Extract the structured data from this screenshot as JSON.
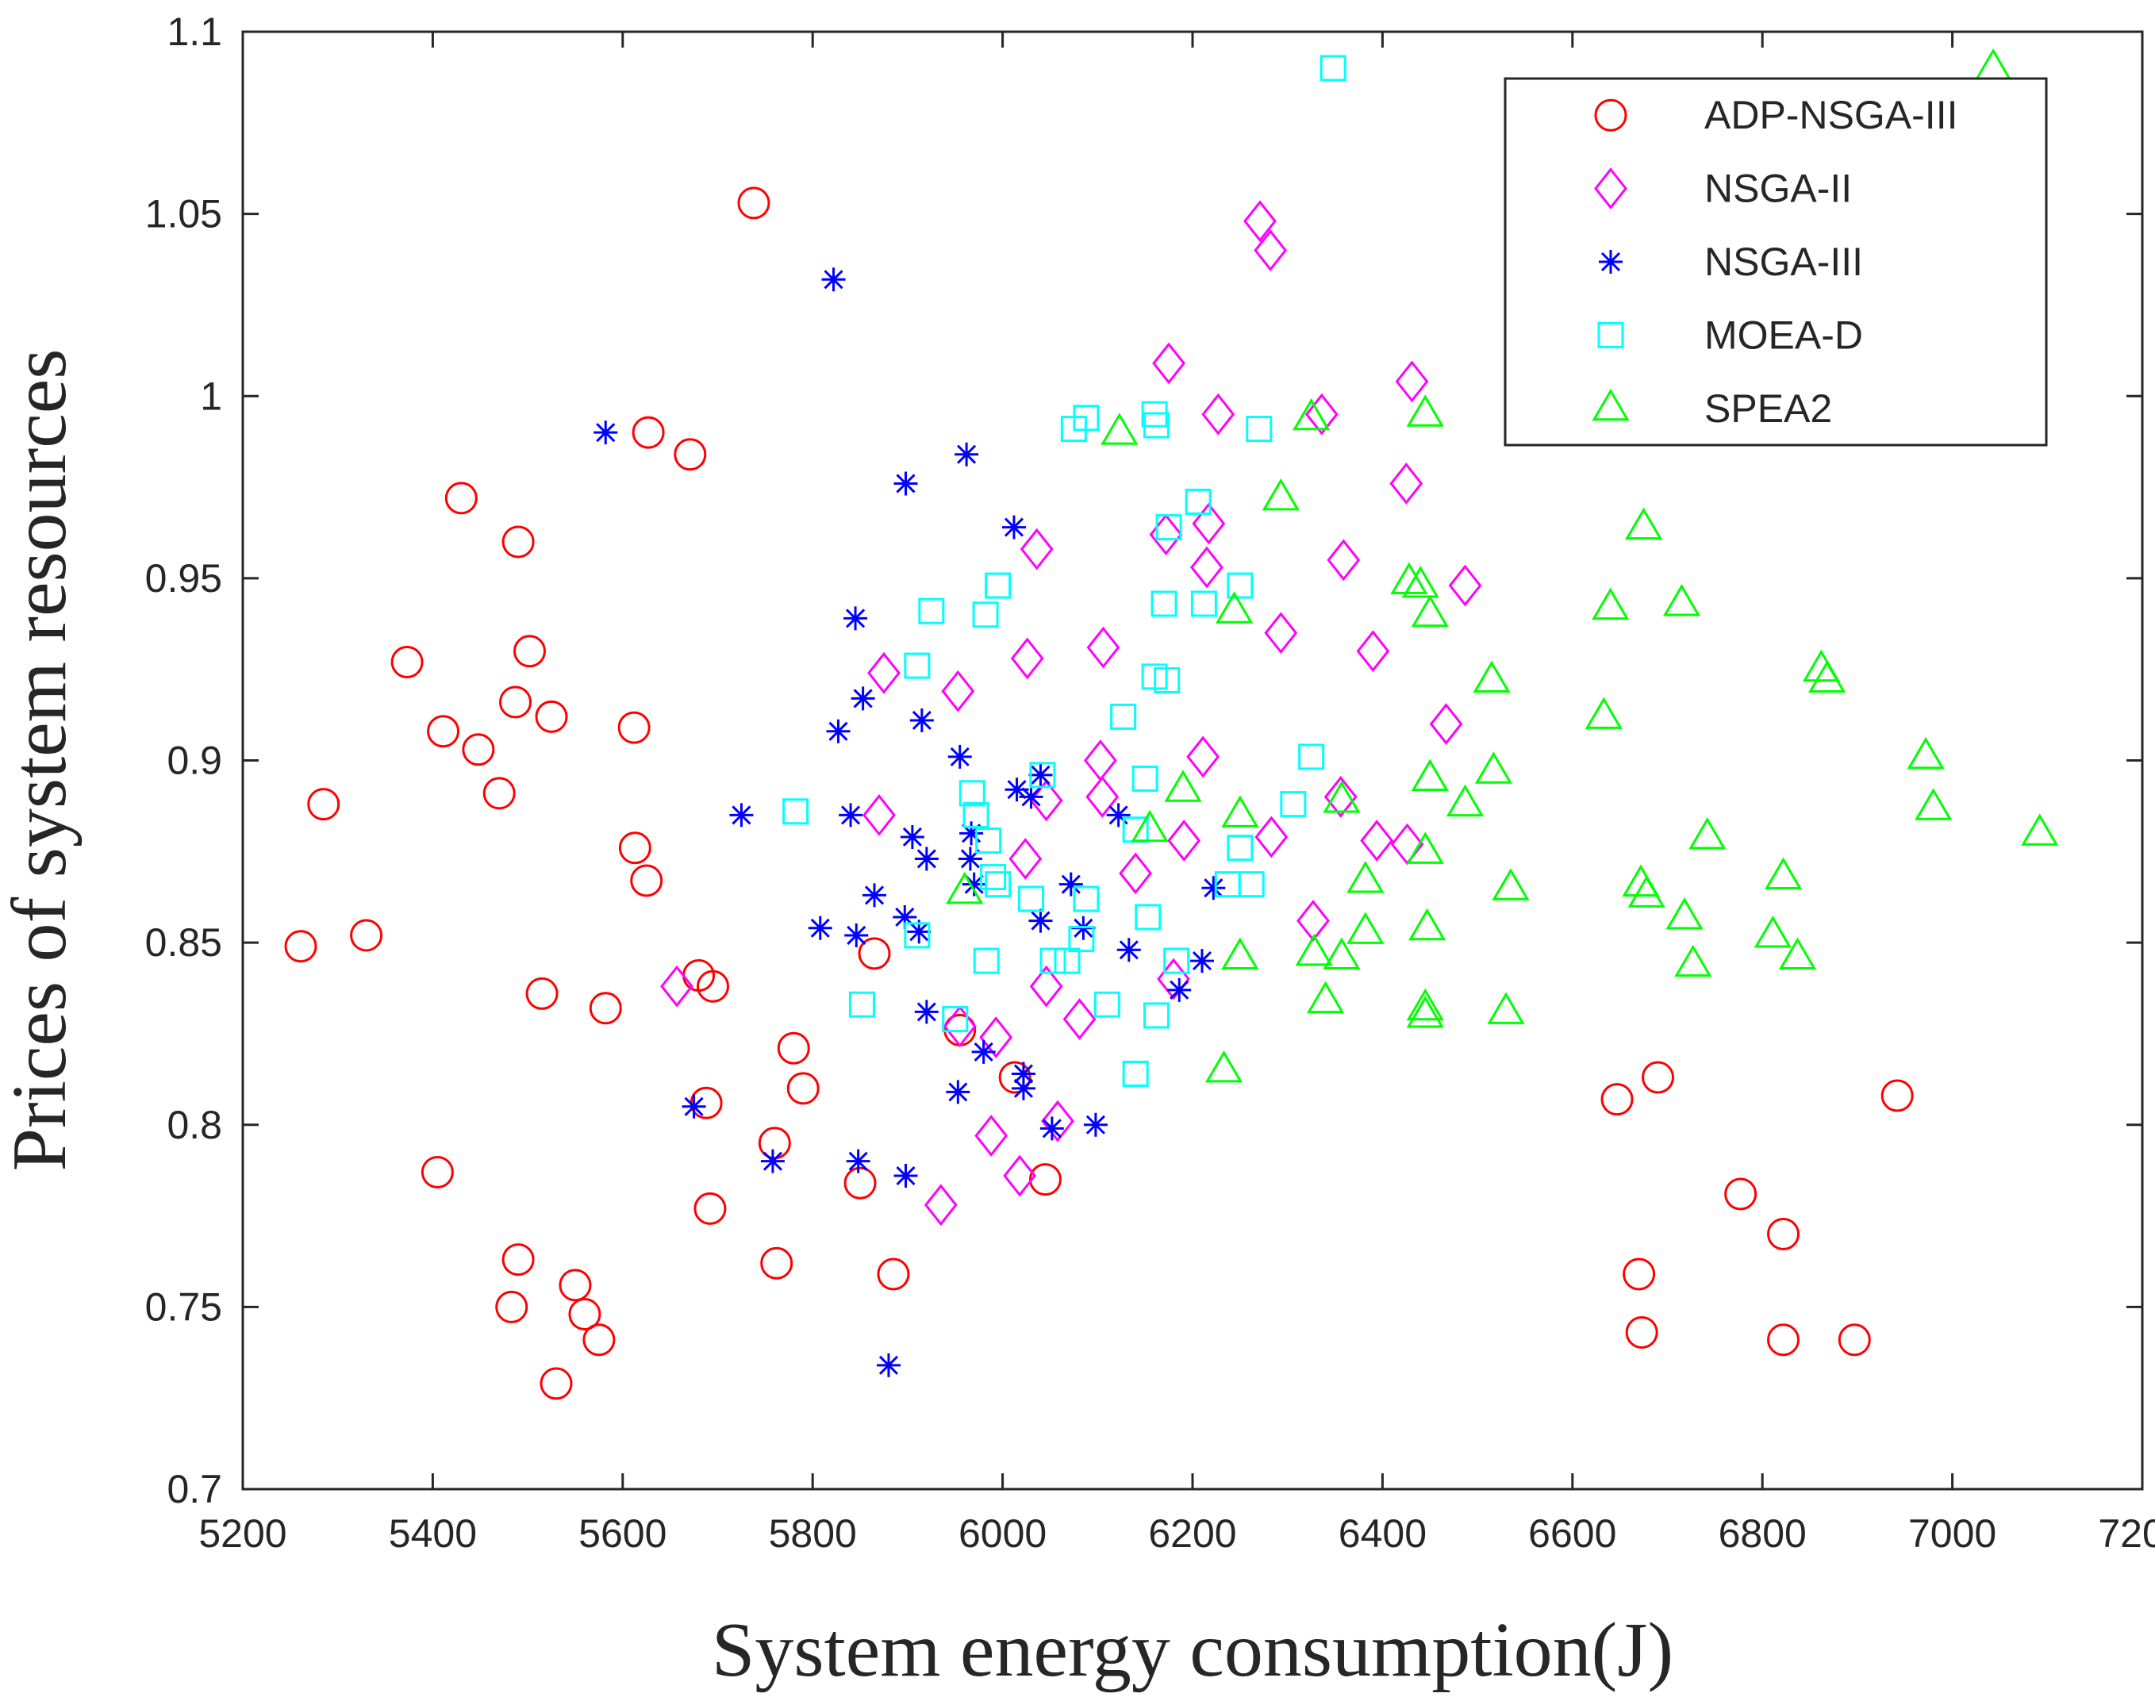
{
  "chart_data": {
    "type": "scatter",
    "title": "",
    "xlabel": "System energy consumption(J)",
    "ylabel": "Prices of system resources",
    "xlim": [
      5200,
      7200
    ],
    "ylim": [
      0.7,
      1.1
    ],
    "xticks": [
      5200,
      5400,
      5600,
      5800,
      6000,
      6200,
      6400,
      6600,
      6800,
      7000,
      7200
    ],
    "yticks": [
      0.7,
      0.75,
      0.8,
      0.85,
      0.9,
      0.95,
      1.0,
      1.05,
      1.1
    ],
    "xtick_labels": [
      "5200",
      "5400",
      "5600",
      "5800",
      "6000",
      "6200",
      "6400",
      "6600",
      "6800",
      "7000",
      "7200"
    ],
    "ytick_labels": [
      "0.7",
      "0.75",
      "0.8",
      "0.85",
      "0.9",
      "0.95",
      "1",
      "1.05",
      "1.1"
    ],
    "grid": false,
    "legend_position": "top-right",
    "series": [
      {
        "name": "ADP-NSGA-III",
        "marker": "circle",
        "color": "#ff0000",
        "points": [
          [
            5738,
            1.053
          ],
          [
            5627,
            0.99
          ],
          [
            5671,
            0.984
          ],
          [
            5430,
            0.972
          ],
          [
            5490,
            0.96
          ],
          [
            5373,
            0.927
          ],
          [
            5502,
            0.93
          ],
          [
            5487,
            0.916
          ],
          [
            5525,
            0.912
          ],
          [
            5411,
            0.908
          ],
          [
            5612,
            0.909
          ],
          [
            5448,
            0.903
          ],
          [
            5470,
            0.891
          ],
          [
            5285,
            0.888
          ],
          [
            5613,
            0.876
          ],
          [
            5625,
            0.867
          ],
          [
            5261,
            0.849
          ],
          [
            5330,
            0.852
          ],
          [
            5865,
            0.847
          ],
          [
            5680,
            0.841
          ],
          [
            5695,
            0.838
          ],
          [
            5515,
            0.836
          ],
          [
            5582,
            0.832
          ],
          [
            5955,
            0.826
          ],
          [
            5780,
            0.821
          ],
          [
            6013,
            0.813
          ],
          [
            5790,
            0.81
          ],
          [
            5688,
            0.806
          ],
          [
            5405,
            0.787
          ],
          [
            5760,
            0.795
          ],
          [
            5850,
            0.784
          ],
          [
            6045,
            0.785
          ],
          [
            5692,
            0.777
          ],
          [
            5490,
            0.763
          ],
          [
            5762,
            0.762
          ],
          [
            5550,
            0.756
          ],
          [
            5885,
            0.759
          ],
          [
            5483,
            0.75
          ],
          [
            5560,
            0.748
          ],
          [
            5575,
            0.741
          ],
          [
            5530,
            0.729
          ],
          [
            6647,
            0.807
          ],
          [
            6690,
            0.813
          ],
          [
            6942,
            0.808
          ],
          [
            6777,
            0.781
          ],
          [
            6670,
            0.759
          ],
          [
            6822,
            0.77
          ],
          [
            6673,
            0.743
          ],
          [
            6822,
            0.741
          ],
          [
            6897,
            0.741
          ]
        ]
      },
      {
        "name": "NSGA-II",
        "marker": "diamond",
        "color": "#ff00ff",
        "points": [
          [
            6271,
            1.048
          ],
          [
            6282,
            1.04
          ],
          [
            6175,
            1.009
          ],
          [
            6431,
            1.004
          ],
          [
            6227,
            0.995
          ],
          [
            6336,
            0.995
          ],
          [
            6425,
            0.976
          ],
          [
            6217,
            0.965
          ],
          [
            6172,
            0.962
          ],
          [
            6036,
            0.958
          ],
          [
            6359,
            0.955
          ],
          [
            6215,
            0.953
          ],
          [
            6487,
            0.948
          ],
          [
            6293,
            0.935
          ],
          [
            6106,
            0.931
          ],
          [
            6390,
            0.93
          ],
          [
            6026,
            0.928
          ],
          [
            5875,
            0.924
          ],
          [
            5953,
            0.919
          ],
          [
            6467,
            0.91
          ],
          [
            6103,
            0.9
          ],
          [
            6211,
            0.901
          ],
          [
            6356,
            0.89
          ],
          [
            6105,
            0.89
          ],
          [
            6046,
            0.889
          ],
          [
            5870,
            0.885
          ],
          [
            6283,
            0.879
          ],
          [
            6394,
            0.878
          ],
          [
            6191,
            0.878
          ],
          [
            6426,
            0.877
          ],
          [
            6024,
            0.873
          ],
          [
            6140,
            0.869
          ],
          [
            6327,
            0.856
          ],
          [
            5657,
            0.838
          ],
          [
            6046,
            0.838
          ],
          [
            6180,
            0.84
          ],
          [
            6081,
            0.829
          ],
          [
            5955,
            0.827
          ],
          [
            5993,
            0.824
          ],
          [
            6058,
            0.801
          ],
          [
            5988,
            0.797
          ],
          [
            6018,
            0.786
          ],
          [
            5935,
            0.778
          ]
        ]
      },
      {
        "name": "NSGA-III",
        "marker": "asterisk",
        "color": "#0000ff",
        "points": [
          [
            5822,
            1.032
          ],
          [
            5582,
            0.99
          ],
          [
            5962,
            0.984
          ],
          [
            5898,
            0.976
          ],
          [
            6012,
            0.964
          ],
          [
            5845,
            0.939
          ],
          [
            5853,
            0.917
          ],
          [
            5915,
            0.911
          ],
          [
            5827,
            0.908
          ],
          [
            5955,
            0.901
          ],
          [
            6040,
            0.896
          ],
          [
            6015,
            0.892
          ],
          [
            6030,
            0.89
          ],
          [
            5725,
            0.885
          ],
          [
            5840,
            0.885
          ],
          [
            6122,
            0.885
          ],
          [
            5967,
            0.88
          ],
          [
            5905,
            0.879
          ],
          [
            5920,
            0.873
          ],
          [
            5966,
            0.873
          ],
          [
            5970,
            0.866
          ],
          [
            6072,
            0.866
          ],
          [
            6222,
            0.865
          ],
          [
            5865,
            0.863
          ],
          [
            6040,
            0.856
          ],
          [
            5897,
            0.857
          ],
          [
            6085,
            0.854
          ],
          [
            5808,
            0.854
          ],
          [
            5846,
            0.852
          ],
          [
            5912,
            0.853
          ],
          [
            6133,
            0.848
          ],
          [
            6210,
            0.845
          ],
          [
            6186,
            0.837
          ],
          [
            5920,
            0.831
          ],
          [
            5980,
            0.82
          ],
          [
            6022,
            0.814
          ],
          [
            5675,
            0.805
          ],
          [
            5953,
            0.809
          ],
          [
            6022,
            0.81
          ],
          [
            6052,
            0.799
          ],
          [
            6098,
            0.8
          ],
          [
            5758,
            0.79
          ],
          [
            5848,
            0.79
          ],
          [
            5898,
            0.786
          ],
          [
            5880,
            0.734
          ]
        ]
      },
      {
        "name": "MOEA-D",
        "marker": "square",
        "color": "#00ffff",
        "points": [
          [
            6348,
            1.09
          ],
          [
            6088,
            0.994
          ],
          [
            6160,
            0.995
          ],
          [
            6075,
            0.991
          ],
          [
            6162,
            0.992
          ],
          [
            6270,
            0.991
          ],
          [
            6206,
            0.971
          ],
          [
            6175,
            0.964
          ],
          [
            6250,
            0.948
          ],
          [
            5995,
            0.948
          ],
          [
            5925,
            0.941
          ],
          [
            5982,
            0.94
          ],
          [
            6170,
            0.943
          ],
          [
            6212,
            0.943
          ],
          [
            5910,
            0.926
          ],
          [
            6160,
            0.923
          ],
          [
            6173,
            0.922
          ],
          [
            6127,
            0.912
          ],
          [
            6325,
            0.901
          ],
          [
            6042,
            0.896
          ],
          [
            5968,
            0.891
          ],
          [
            6150,
            0.895
          ],
          [
            5972,
            0.885
          ],
          [
            6306,
            0.888
          ],
          [
            5782,
            0.886
          ],
          [
            6140,
            0.881
          ],
          [
            5985,
            0.878
          ],
          [
            6250,
            0.876
          ],
          [
            6237,
            0.866
          ],
          [
            6262,
            0.866
          ],
          [
            5995,
            0.866
          ],
          [
            6030,
            0.862
          ],
          [
            6088,
            0.862
          ],
          [
            6153,
            0.857
          ],
          [
            5990,
            0.868
          ],
          [
            6083,
            0.851
          ],
          [
            5910,
            0.852
          ],
          [
            6053,
            0.845
          ],
          [
            5983,
            0.845
          ],
          [
            6068,
            0.845
          ],
          [
            6183,
            0.845
          ],
          [
            5852,
            0.833
          ],
          [
            6110,
            0.833
          ],
          [
            6162,
            0.83
          ],
          [
            5950,
            0.829
          ],
          [
            6140,
            0.814
          ]
        ]
      },
      {
        "name": "SPEA2",
        "marker": "triangle",
        "color": "#00ff00",
        "points": [
          [
            7043,
            1.09
          ],
          [
            6123,
            0.99
          ],
          [
            6325,
            0.994
          ],
          [
            6445,
            0.995
          ],
          [
            6552,
            0.997
          ],
          [
            6293,
            0.972
          ],
          [
            6675,
            0.964
          ],
          [
            6640,
            0.942
          ],
          [
            6715,
            0.943
          ],
          [
            6428,
            0.949
          ],
          [
            6440,
            0.948
          ],
          [
            6244,
            0.941
          ],
          [
            6450,
            0.94
          ],
          [
            6515,
            0.922
          ],
          [
            6633,
            0.912
          ],
          [
            6862,
            0.925
          ],
          [
            6868,
            0.922
          ],
          [
            6972,
            0.901
          ],
          [
            6190,
            0.892
          ],
          [
            6450,
            0.895
          ],
          [
            6517,
            0.897
          ],
          [
            6250,
            0.885
          ],
          [
            6357,
            0.889
          ],
          [
            6487,
            0.888
          ],
          [
            6980,
            0.887
          ],
          [
            6155,
            0.881
          ],
          [
            6742,
            0.879
          ],
          [
            7092,
            0.88
          ],
          [
            6445,
            0.875
          ],
          [
            6382,
            0.867
          ],
          [
            6535,
            0.865
          ],
          [
            6822,
            0.868
          ],
          [
            6672,
            0.866
          ],
          [
            6678,
            0.863
          ],
          [
            5960,
            0.864
          ],
          [
            6382,
            0.853
          ],
          [
            6447,
            0.854
          ],
          [
            6718,
            0.857
          ],
          [
            6811,
            0.852
          ],
          [
            6250,
            0.846
          ],
          [
            6328,
            0.847
          ],
          [
            6357,
            0.846
          ],
          [
            6727,
            0.844
          ],
          [
            6837,
            0.846
          ],
          [
            6340,
            0.834
          ],
          [
            6445,
            0.832
          ],
          [
            6445,
            0.83
          ],
          [
            6530,
            0.831
          ],
          [
            6233,
            0.815
          ]
        ]
      }
    ]
  }
}
